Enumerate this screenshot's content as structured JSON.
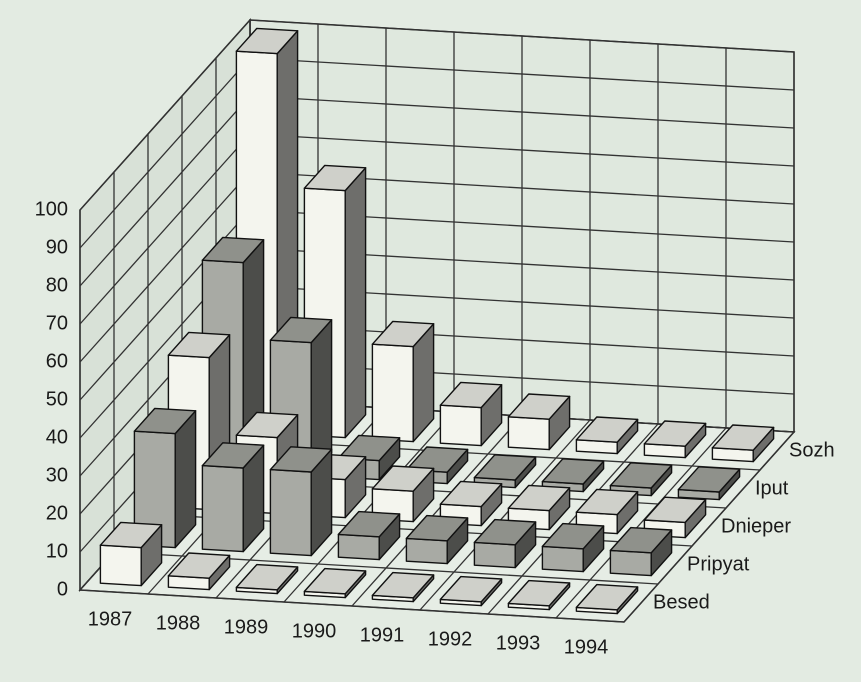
{
  "chart_data": {
    "type": "bar3d",
    "categories": [
      "1987",
      "1988",
      "1989",
      "1990",
      "1991",
      "1992",
      "1993",
      "1994"
    ],
    "series": [
      {
        "name": "Besed",
        "color": "#f4f5ee",
        "values": [
          10,
          3,
          1,
          1,
          1,
          1,
          1,
          1
        ]
      },
      {
        "name": "Pripyat",
        "color": "#a8aaa4",
        "values": [
          30,
          22,
          22,
          6,
          6,
          6,
          6,
          6
        ]
      },
      {
        "name": "Dnieper",
        "color": "#f4f5ee",
        "values": [
          40,
          20,
          10,
          8,
          5,
          5,
          5,
          4
        ]
      },
      {
        "name": "Iput",
        "color": "#a8aaa4",
        "values": [
          55,
          35,
          5,
          3,
          2,
          2,
          2,
          2
        ]
      },
      {
        "name": "Sozh",
        "color": "#f4f5ee",
        "values": [
          100,
          65,
          25,
          10,
          8,
          3,
          3,
          3
        ]
      }
    ],
    "ylim": [
      0,
      100
    ],
    "yticks": [
      0,
      10,
      20,
      30,
      40,
      50,
      60,
      70,
      80,
      90,
      100
    ],
    "grid": true
  }
}
